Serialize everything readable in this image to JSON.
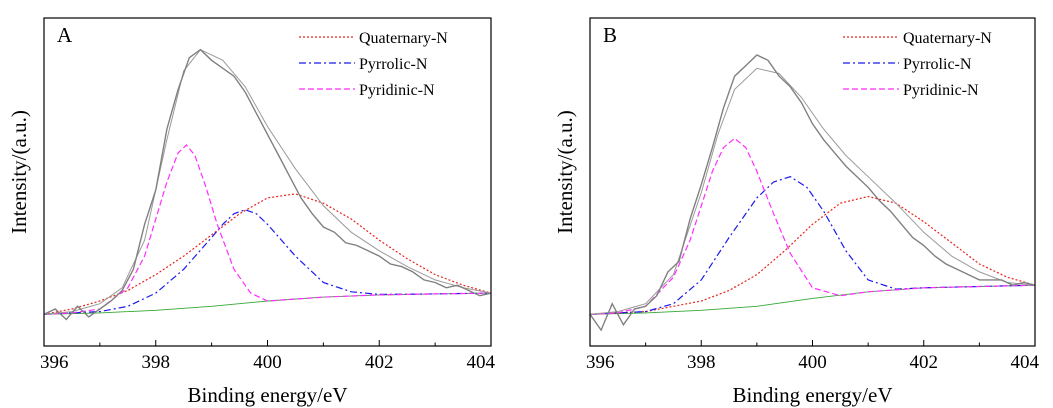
{
  "chart_data": [
    {
      "type": "line",
      "panel_label": "A",
      "xlabel": "Binding energy/eV",
      "ylabel": "Intensity/(a.u.)",
      "xlim": [
        396,
        404
      ],
      "ylim": [
        -0.12,
        1.12
      ],
      "y_ticks_shown": false,
      "x_ticks": [
        396,
        398,
        400,
        402,
        404
      ],
      "grid": false,
      "legend_position": "top-right",
      "raw_data": {
        "color": "#808080",
        "x": [
          396.0,
          396.2,
          396.4,
          396.6,
          396.8,
          397.0,
          397.2,
          397.4,
          397.6,
          397.8,
          398.0,
          398.2,
          398.4,
          398.6,
          398.8,
          399.0,
          399.2,
          399.4,
          399.6,
          399.8,
          400.0,
          400.2,
          400.4,
          400.6,
          400.8,
          401.0,
          401.2,
          401.4,
          401.6,
          401.8,
          402.0,
          402.2,
          402.4,
          402.6,
          402.8,
          403.0,
          403.2,
          403.4,
          403.6,
          403.8,
          404.0
        ],
        "y": [
          0.0,
          0.02,
          -0.02,
          0.03,
          -0.01,
          0.02,
          0.05,
          0.09,
          0.17,
          0.34,
          0.47,
          0.7,
          0.85,
          0.97,
          1.0,
          0.96,
          0.93,
          0.9,
          0.84,
          0.76,
          0.68,
          0.6,
          0.52,
          0.44,
          0.38,
          0.33,
          0.31,
          0.27,
          0.26,
          0.24,
          0.22,
          0.19,
          0.18,
          0.16,
          0.13,
          0.12,
          0.1,
          0.11,
          0.09,
          0.07,
          0.08
        ]
      },
      "fitted_envelope": {
        "color": "#9a9a9a",
        "x": [
          396.0,
          396.5,
          397.0,
          397.4,
          397.8,
          398.2,
          398.5,
          398.8,
          399.2,
          399.6,
          400.0,
          400.5,
          401.0,
          401.5,
          402.0,
          402.5,
          403.0,
          403.5,
          404.0
        ],
        "y": [
          0.0,
          0.01,
          0.04,
          0.1,
          0.28,
          0.66,
          0.92,
          1.0,
          0.96,
          0.86,
          0.71,
          0.55,
          0.41,
          0.31,
          0.24,
          0.18,
          0.13,
          0.1,
          0.08
        ]
      },
      "baseline": {
        "color": "#33a833",
        "x": [
          396.0,
          397.0,
          398.0,
          399.0,
          400.0,
          401.0,
          402.0,
          403.0,
          404.0
        ],
        "y": [
          0.0,
          0.005,
          0.015,
          0.03,
          0.05,
          0.065,
          0.073,
          0.077,
          0.08
        ]
      },
      "series": [
        {
          "name": "Quaternary-N",
          "color": "#e8241c",
          "dash": "dotted",
          "x": [
            396.0,
            396.5,
            397.0,
            397.5,
            398.0,
            398.5,
            399.0,
            399.5,
            400.0,
            400.5,
            401.0,
            401.5,
            402.0,
            402.5,
            403.0,
            403.5,
            404.0
          ],
          "y": [
            0.0,
            0.02,
            0.05,
            0.09,
            0.15,
            0.22,
            0.3,
            0.38,
            0.44,
            0.455,
            0.42,
            0.36,
            0.28,
            0.21,
            0.15,
            0.11,
            0.08
          ]
        },
        {
          "name": "Pyrrolic-N",
          "color": "#1a1aee",
          "dash": "dashdot",
          "x": [
            396.0,
            396.5,
            397.0,
            397.5,
            398.0,
            398.5,
            399.0,
            399.2,
            399.4,
            399.6,
            399.8,
            400.0,
            400.5,
            401.0,
            401.5,
            402.0,
            403.0,
            404.0
          ],
          "y": [
            0.0,
            0.005,
            0.01,
            0.03,
            0.08,
            0.17,
            0.29,
            0.34,
            0.38,
            0.395,
            0.38,
            0.34,
            0.22,
            0.12,
            0.085,
            0.075,
            0.077,
            0.08
          ]
        },
        {
          "name": "Pyridinic-N",
          "color": "#ff2dff",
          "dash": "dashed",
          "x": [
            396.0,
            396.5,
            397.0,
            397.5,
            397.8,
            398.0,
            398.2,
            398.4,
            398.55,
            398.7,
            398.9,
            399.1,
            399.4,
            399.7,
            400.0,
            401.0,
            402.0,
            403.0,
            404.0
          ],
          "y": [
            0.0,
            0.005,
            0.02,
            0.1,
            0.22,
            0.36,
            0.5,
            0.61,
            0.64,
            0.6,
            0.48,
            0.34,
            0.17,
            0.08,
            0.05,
            0.065,
            0.073,
            0.077,
            0.08
          ]
        }
      ]
    },
    {
      "type": "line",
      "panel_label": "B",
      "xlabel": "Binding energy/eV",
      "ylabel": "Intensity/(a.u.)",
      "xlim": [
        396,
        404
      ],
      "ylim": [
        -0.12,
        1.12
      ],
      "y_ticks_shown": false,
      "x_ticks": [
        396,
        398,
        400,
        402,
        404
      ],
      "grid": false,
      "legend_position": "top-right",
      "raw_data": {
        "color": "#808080",
        "x": [
          396.0,
          396.2,
          396.4,
          396.6,
          396.8,
          397.0,
          397.2,
          397.4,
          397.6,
          397.8,
          398.0,
          398.2,
          398.4,
          398.6,
          398.8,
          399.0,
          399.2,
          399.4,
          399.6,
          399.8,
          400.0,
          400.2,
          400.4,
          400.6,
          400.8,
          401.0,
          401.2,
          401.4,
          401.6,
          401.8,
          402.0,
          402.2,
          402.4,
          402.6,
          402.8,
          403.0,
          403.2,
          403.4,
          403.6,
          403.8,
          404.0
        ],
        "y": [
          0.0,
          -0.06,
          0.04,
          -0.04,
          0.02,
          0.03,
          0.07,
          0.16,
          0.2,
          0.36,
          0.49,
          0.63,
          0.78,
          0.9,
          0.94,
          0.98,
          0.96,
          0.9,
          0.86,
          0.8,
          0.72,
          0.66,
          0.61,
          0.56,
          0.52,
          0.48,
          0.43,
          0.39,
          0.34,
          0.29,
          0.26,
          0.22,
          0.19,
          0.17,
          0.15,
          0.13,
          0.13,
          0.13,
          0.11,
          0.12,
          0.11
        ]
      },
      "fitted_envelope": {
        "color": "#9a9a9a",
        "x": [
          396.0,
          396.5,
          397.0,
          397.5,
          398.0,
          398.3,
          398.6,
          399.0,
          399.4,
          399.8,
          400.2,
          400.6,
          401.0,
          401.5,
          402.0,
          402.5,
          403.0,
          403.5,
          404.0
        ],
        "y": [
          0.0,
          0.01,
          0.04,
          0.15,
          0.46,
          0.68,
          0.85,
          0.93,
          0.91,
          0.82,
          0.7,
          0.6,
          0.52,
          0.42,
          0.31,
          0.22,
          0.16,
          0.12,
          0.11
        ]
      },
      "baseline": {
        "color": "#33a833",
        "x": [
          396.0,
          397.0,
          398.0,
          399.0,
          400.0,
          401.0,
          402.0,
          403.0,
          404.0
        ],
        "y": [
          0.0,
          0.005,
          0.015,
          0.03,
          0.06,
          0.085,
          0.1,
          0.105,
          0.11
        ]
      },
      "series": [
        {
          "name": "Quaternary-N",
          "color": "#e8241c",
          "dash": "dotted",
          "x": [
            396.0,
            396.5,
            397.0,
            397.5,
            398.0,
            398.5,
            399.0,
            399.5,
            400.0,
            400.5,
            401.0,
            401.5,
            402.0,
            402.5,
            403.0,
            403.5,
            404.0
          ],
          "y": [
            0.0,
            0.005,
            0.01,
            0.03,
            0.05,
            0.09,
            0.15,
            0.24,
            0.34,
            0.42,
            0.445,
            0.42,
            0.35,
            0.27,
            0.19,
            0.14,
            0.11
          ]
        },
        {
          "name": "Pyrrolic-N",
          "color": "#1a1aee",
          "dash": "dashdot",
          "x": [
            396.0,
            396.5,
            397.0,
            397.5,
            398.0,
            398.5,
            399.0,
            399.3,
            399.6,
            399.9,
            400.2,
            400.6,
            401.0,
            401.5,
            402.0,
            403.0,
            404.0
          ],
          "y": [
            0.0,
            0.005,
            0.01,
            0.04,
            0.13,
            0.29,
            0.44,
            0.5,
            0.52,
            0.48,
            0.39,
            0.24,
            0.13,
            0.095,
            0.1,
            0.105,
            0.11
          ]
        },
        {
          "name": "Pyridinic-N",
          "color": "#ff2dff",
          "dash": "dashed",
          "x": [
            396.0,
            396.5,
            397.0,
            397.5,
            397.8,
            398.0,
            398.2,
            398.4,
            398.6,
            398.8,
            399.0,
            399.3,
            399.6,
            400.0,
            400.5,
            401.0,
            402.0,
            403.0,
            404.0
          ],
          "y": [
            0.0,
            0.005,
            0.03,
            0.14,
            0.28,
            0.41,
            0.54,
            0.63,
            0.665,
            0.63,
            0.54,
            0.38,
            0.23,
            0.1,
            0.07,
            0.085,
            0.1,
            0.105,
            0.11
          ]
        }
      ]
    }
  ]
}
